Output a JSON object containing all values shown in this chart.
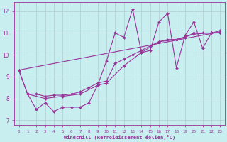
{
  "xlabel": "Windchill (Refroidissement éolien,°C)",
  "background_color": "#c8eef0",
  "line_color": "#993399",
  "grid_color": "#b0ccd0",
  "xlim": [
    -0.5,
    23.5
  ],
  "ylim": [
    6.8,
    12.4
  ],
  "yticks": [
    7,
    8,
    9,
    10,
    11,
    12
  ],
  "xticks": [
    0,
    1,
    2,
    3,
    4,
    5,
    6,
    7,
    8,
    9,
    10,
    11,
    12,
    13,
    14,
    15,
    16,
    17,
    18,
    19,
    20,
    21,
    22,
    23
  ],
  "series1": [
    [
      0,
      9.3
    ],
    [
      1,
      8.2
    ],
    [
      2,
      7.5
    ],
    [
      3,
      7.8
    ],
    [
      4,
      7.4
    ],
    [
      5,
      7.6
    ],
    [
      6,
      7.6
    ],
    [
      7,
      7.6
    ],
    [
      8,
      7.8
    ],
    [
      9,
      8.6
    ],
    [
      10,
      9.7
    ],
    [
      11,
      11.0
    ],
    [
      12,
      10.8
    ],
    [
      13,
      12.1
    ],
    [
      14,
      10.1
    ],
    [
      15,
      10.2
    ],
    [
      16,
      11.5
    ],
    [
      17,
      11.9
    ],
    [
      18,
      9.4
    ],
    [
      19,
      10.9
    ],
    [
      20,
      11.5
    ],
    [
      21,
      10.3
    ],
    [
      22,
      11.0
    ],
    [
      23,
      11.0
    ]
  ],
  "series2": [
    [
      0,
      9.3
    ],
    [
      1,
      8.2
    ],
    [
      2,
      8.2
    ],
    [
      3,
      8.1
    ],
    [
      4,
      8.15
    ],
    [
      5,
      8.15
    ],
    [
      6,
      8.2
    ],
    [
      7,
      8.3
    ],
    [
      8,
      8.5
    ],
    [
      9,
      8.7
    ],
    [
      10,
      8.8
    ],
    [
      11,
      9.6
    ],
    [
      12,
      9.8
    ],
    [
      13,
      10.0
    ],
    [
      14,
      10.2
    ],
    [
      15,
      10.4
    ],
    [
      16,
      10.6
    ],
    [
      17,
      10.7
    ],
    [
      18,
      10.7
    ],
    [
      19,
      10.8
    ],
    [
      20,
      11.0
    ],
    [
      21,
      11.0
    ],
    [
      22,
      11.0
    ],
    [
      23,
      11.1
    ]
  ],
  "series3": [
    [
      0,
      9.3
    ],
    [
      23,
      11.05
    ]
  ],
  "series4": [
    [
      1,
      8.2
    ],
    [
      3,
      8.0
    ],
    [
      5,
      8.1
    ],
    [
      7,
      8.2
    ],
    [
      9,
      8.6
    ],
    [
      10,
      8.7
    ],
    [
      12,
      9.5
    ],
    [
      14,
      10.1
    ],
    [
      16,
      10.6
    ],
    [
      18,
      10.7
    ],
    [
      20,
      10.95
    ],
    [
      22,
      11.0
    ],
    [
      23,
      11.0
    ]
  ]
}
